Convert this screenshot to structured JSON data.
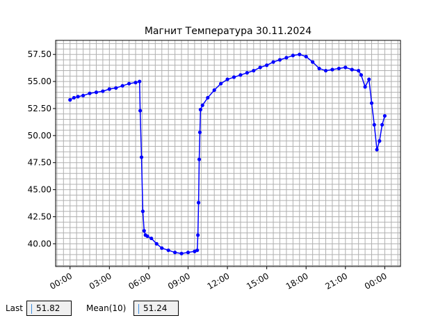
{
  "chart_data": {
    "type": "line",
    "title": "Магнит Температура 30.11.2024",
    "xlabel": "",
    "ylabel": "",
    "x_ticks": [
      "00:00",
      "03:00",
      "06:00",
      "09:00",
      "12:00",
      "15:00",
      "18:00",
      "21:00",
      "00:00"
    ],
    "y_ticks": [
      "40.00",
      "42.50",
      "45.00",
      "47.50",
      "50.00",
      "52.50",
      "55.00",
      "57.50"
    ],
    "xlim_hours": [
      -1.1,
      25.2
    ],
    "ylim": [
      37.9,
      58.8
    ],
    "grid": true,
    "legend": "none",
    "color": "#0000ff",
    "series": [
      {
        "x_hours": [
          0.0,
          0.3,
          0.6,
          1.0,
          1.5,
          2.0,
          2.5,
          3.0,
          3.5,
          4.0,
          4.5,
          5.0,
          5.3,
          5.35,
          5.45,
          5.55,
          5.65,
          5.75,
          5.9,
          6.2,
          6.6,
          7.0,
          7.5,
          8.0,
          8.5,
          9.0,
          9.5,
          9.7,
          9.75,
          9.8,
          9.85,
          9.9,
          9.95,
          10.1,
          10.5,
          11.0,
          11.5,
          12.0,
          12.5,
          13.0,
          13.5,
          14.0,
          14.5,
          15.0,
          15.5,
          16.0,
          16.5,
          17.0,
          17.5,
          18.0,
          18.5,
          19.0,
          19.5,
          20.0,
          20.5,
          21.0,
          21.5,
          22.0,
          22.2,
          22.5,
          22.8,
          23.0,
          23.2,
          23.4,
          23.6,
          23.8,
          24.0
        ],
        "values": [
          53.3,
          53.5,
          53.6,
          53.7,
          53.9,
          54.0,
          54.1,
          54.3,
          54.4,
          54.6,
          54.8,
          54.9,
          55.0,
          52.3,
          48.0,
          43.0,
          41.2,
          40.8,
          40.7,
          40.5,
          40.0,
          39.6,
          39.4,
          39.2,
          39.1,
          39.2,
          39.3,
          39.4,
          40.8,
          43.8,
          47.8,
          50.3,
          52.4,
          52.8,
          53.5,
          54.2,
          54.8,
          55.2,
          55.4,
          55.6,
          55.8,
          56.0,
          56.3,
          56.5,
          56.8,
          57.0,
          57.2,
          57.4,
          57.5,
          57.3,
          56.8,
          56.2,
          56.0,
          56.1,
          56.2,
          56.3,
          56.1,
          56.0,
          55.6,
          54.5,
          55.2,
          53.0,
          51.0,
          48.7,
          49.5,
          51.0,
          51.82
        ]
      }
    ]
  },
  "readouts": {
    "last_label": "Last",
    "last_value": "51.82",
    "mean_label": "Mean(10)",
    "mean_value": "51.24"
  }
}
